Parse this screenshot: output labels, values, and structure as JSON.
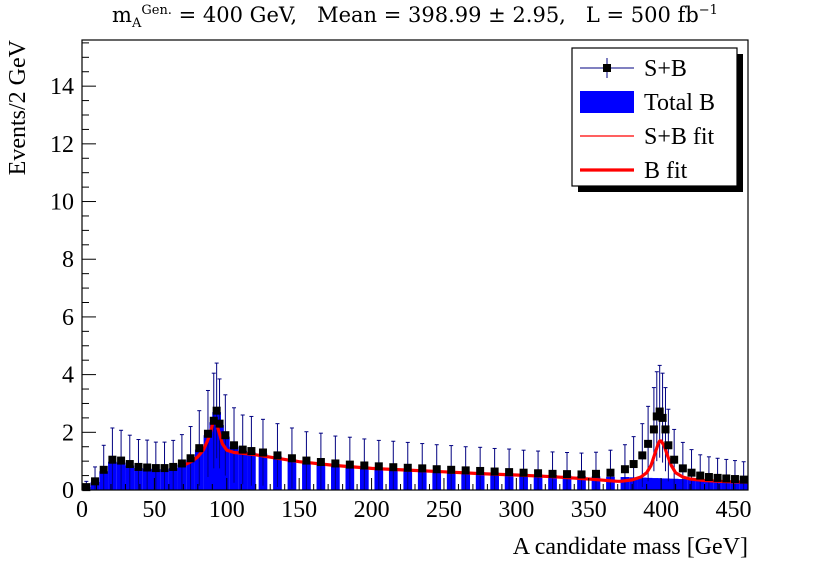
{
  "chart_data": {
    "type": "histogram",
    "title": {
      "parts": {
        "m_symbol": "m",
        "m_super": "Gen.",
        "m_sub": "A",
        "m_value": "= 400 GeV,",
        "mean": "Mean = 398.99 ± 2.95,",
        "lumi_text": "L = 500 fb",
        "lumi_exp": "−1"
      }
    },
    "xlabel": "A candidate mass [GeV]",
    "ylabel": "Events/2 GeV",
    "xlim": [
      0,
      460
    ],
    "ylim": [
      0,
      15.6
    ],
    "x_ticks": [
      0,
      50,
      100,
      150,
      200,
      250,
      300,
      350,
      400,
      450
    ],
    "y_ticks": [
      0,
      2,
      4,
      6,
      8,
      10,
      12,
      14
    ],
    "bin_width": 2,
    "legend": {
      "position": "top-right",
      "entries": [
        {
          "label": "S+B",
          "style": "marker-errorbar",
          "color": "#000080"
        },
        {
          "label": "Total B",
          "style": "filled-box",
          "color": "#0000ff"
        },
        {
          "label": "S+B fit",
          "style": "thin-line",
          "color": "#ff0000"
        },
        {
          "label": "B fit",
          "style": "thick-line",
          "color": "#ff0000"
        }
      ]
    },
    "series": [
      {
        "name": "S+B",
        "x": [
          3,
          9,
          15,
          21,
          27,
          33,
          39,
          45,
          51,
          57,
          63,
          69,
          75,
          81,
          87,
          91,
          93,
          95,
          99,
          105,
          111,
          117,
          125,
          135,
          145,
          155,
          165,
          175,
          185,
          195,
          205,
          215,
          225,
          235,
          245,
          255,
          265,
          275,
          285,
          295,
          305,
          315,
          325,
          335,
          345,
          355,
          365,
          375,
          381,
          387,
          391,
          395,
          397,
          399,
          401,
          403,
          405,
          409,
          415,
          421,
          427,
          433,
          439,
          445,
          451,
          457
        ],
        "y": [
          0.1,
          0.3,
          0.7,
          1.05,
          1.02,
          0.9,
          0.8,
          0.78,
          0.76,
          0.76,
          0.8,
          0.92,
          1.1,
          1.45,
          1.95,
          2.4,
          2.75,
          2.3,
          1.9,
          1.55,
          1.4,
          1.35,
          1.3,
          1.2,
          1.1,
          1.02,
          0.97,
          0.92,
          0.88,
          0.85,
          0.82,
          0.79,
          0.77,
          0.75,
          0.72,
          0.7,
          0.68,
          0.66,
          0.64,
          0.62,
          0.6,
          0.58,
          0.56,
          0.55,
          0.54,
          0.56,
          0.6,
          0.72,
          0.9,
          1.2,
          1.6,
          2.1,
          2.55,
          2.72,
          2.5,
          2.1,
          1.55,
          1.05,
          0.75,
          0.6,
          0.5,
          0.45,
          0.42,
          0.4,
          0.38,
          0.36
        ],
        "yerr": [
          0.2,
          0.5,
          0.85,
          1.1,
          1.05,
          1.0,
          0.95,
          0.95,
          0.9,
          0.9,
          0.92,
          1.0,
          1.1,
          1.3,
          1.5,
          1.65,
          1.65,
          1.55,
          1.4,
          1.3,
          1.2,
          1.2,
          1.15,
          1.1,
          1.05,
          1.0,
          1.0,
          0.95,
          0.95,
          0.92,
          0.9,
          0.9,
          0.88,
          0.86,
          0.85,
          0.84,
          0.82,
          0.82,
          0.8,
          0.8,
          0.78,
          0.77,
          0.76,
          0.75,
          0.74,
          0.75,
          0.78,
          0.85,
          0.95,
          1.1,
          1.3,
          1.45,
          1.55,
          1.6,
          1.55,
          1.45,
          1.25,
          1.05,
          0.9,
          0.8,
          0.72,
          0.7,
          0.68,
          0.66,
          0.64,
          0.62
        ]
      },
      {
        "name": "Total B",
        "x": [
          3,
          9,
          15,
          21,
          27,
          33,
          39,
          45,
          51,
          57,
          63,
          69,
          75,
          81,
          87,
          91,
          93,
          95,
          99,
          105,
          111,
          117,
          125,
          135,
          145,
          155,
          165,
          175,
          185,
          195,
          205,
          215,
          225,
          235,
          245,
          255,
          265,
          275,
          285,
          295,
          305,
          315,
          325,
          335,
          345,
          355,
          365,
          375,
          381,
          387,
          391,
          395,
          397,
          399,
          401,
          403,
          405,
          409,
          415,
          421,
          427,
          433,
          439,
          445,
          451,
          457
        ],
        "y": [
          0.1,
          0.28,
          0.65,
          0.98,
          0.95,
          0.85,
          0.76,
          0.74,
          0.72,
          0.72,
          0.76,
          0.88,
          1.05,
          1.4,
          1.9,
          2.35,
          2.7,
          2.25,
          1.85,
          1.5,
          1.36,
          1.3,
          1.26,
          1.16,
          1.06,
          0.98,
          0.93,
          0.88,
          0.84,
          0.81,
          0.78,
          0.75,
          0.73,
          0.71,
          0.68,
          0.66,
          0.64,
          0.62,
          0.6,
          0.58,
          0.56,
          0.54,
          0.52,
          0.5,
          0.48,
          0.47,
          0.46,
          0.45,
          0.44,
          0.43,
          0.42,
          0.41,
          0.41,
          0.4,
          0.4,
          0.4,
          0.39,
          0.39,
          0.38,
          0.37,
          0.36,
          0.35,
          0.34,
          0.33,
          0.32,
          0.31
        ]
      },
      {
        "name": "S+B fit",
        "x": [
          372,
          380,
          386,
          390,
          393,
          396,
          398,
          399,
          400,
          402,
          404,
          407,
          410,
          415,
          420,
          430,
          440,
          450,
          460
        ],
        "y": [
          0.3,
          0.35,
          0.45,
          0.6,
          0.85,
          1.3,
          1.6,
          1.7,
          1.7,
          1.55,
          1.25,
          0.85,
          0.6,
          0.45,
          0.38,
          0.33,
          0.3,
          0.28,
          0.27
        ]
      },
      {
        "name": "B fit",
        "x": [
          70,
          76,
          80,
          84,
          87,
          89,
          90,
          91,
          92,
          93,
          95,
          97,
          100,
          105,
          110,
          120,
          135,
          150,
          175,
          200,
          225,
          250,
          275,
          300,
          325,
          350,
          360,
          365,
          370,
          372
        ],
        "y": [
          0.85,
          1.0,
          1.15,
          1.4,
          1.75,
          2.05,
          2.25,
          2.4,
          2.42,
          2.3,
          1.95,
          1.6,
          1.38,
          1.3,
          1.28,
          1.22,
          1.1,
          0.98,
          0.85,
          0.75,
          0.69,
          0.63,
          0.57,
          0.52,
          0.46,
          0.38,
          0.34,
          0.32,
          0.3,
          0.3
        ]
      }
    ]
  }
}
